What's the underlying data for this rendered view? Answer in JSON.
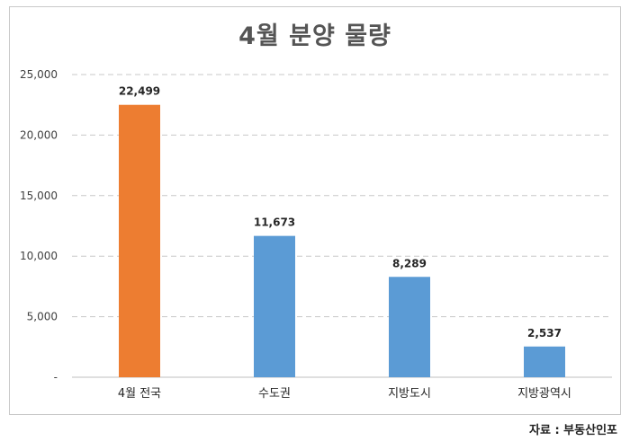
{
  "chart_data": {
    "type": "bar",
    "title": "4월 분양 물량",
    "categories": [
      "4월 전국",
      "수도권",
      "지방도시",
      "지방광역시"
    ],
    "values": [
      22499,
      11673,
      8289,
      2537
    ],
    "value_labels": [
      "22,499",
      "11,673",
      "8,289",
      "2,537"
    ],
    "bar_colors": [
      "#ed7d31",
      "#5b9bd5",
      "#5b9bd5",
      "#5b9bd5"
    ],
    "ylim": [
      0,
      25000
    ],
    "yticks": [
      0,
      5000,
      10000,
      15000,
      20000,
      25000
    ],
    "ytick_labels": [
      "-",
      "5,000",
      "10,000",
      "15,000",
      "20,000",
      "25,000"
    ],
    "grid": true,
    "xlabel": "",
    "ylabel": ""
  },
  "source": "자료 : 부동산인포"
}
